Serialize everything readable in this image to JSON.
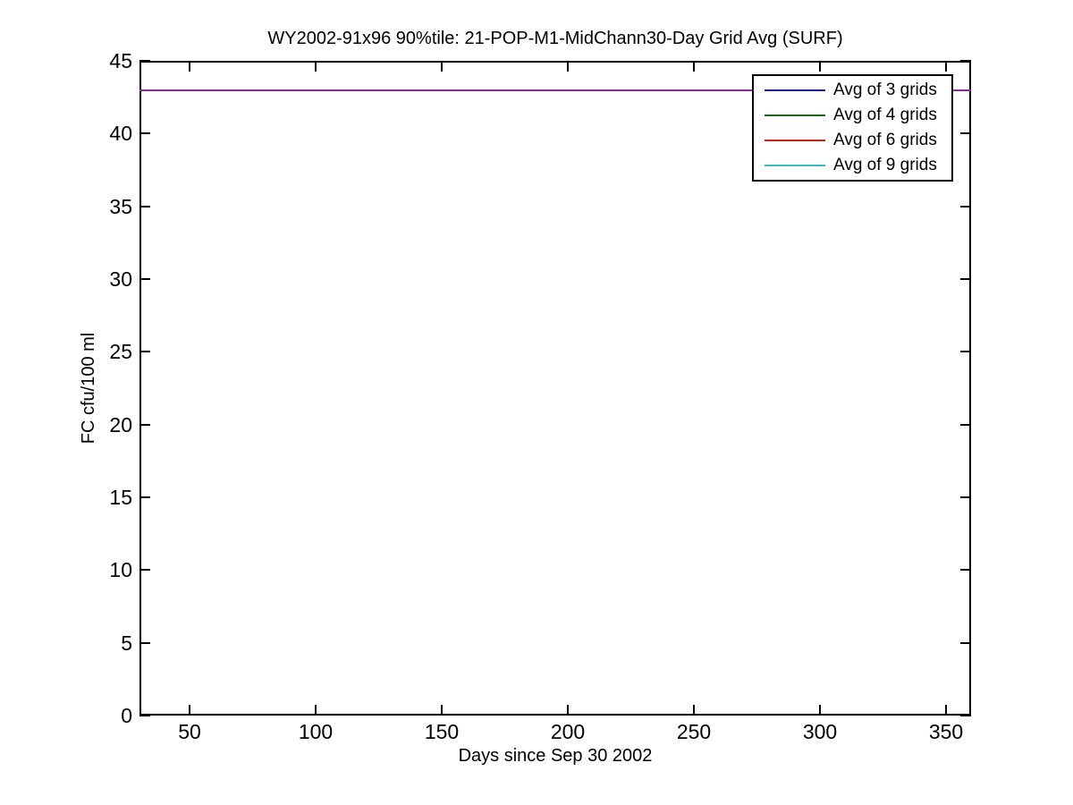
{
  "chart_data": {
    "type": "line",
    "title": "WY2002-91x96 90%tile: 21-POP-M1-MidChann30-Day Grid Avg (SURF)",
    "xlabel": "Days since Sep 30 2002",
    "ylabel": "FC cfu/100 ml",
    "xlim": [
      30,
      360
    ],
    "ylim": [
      0,
      45
    ],
    "xticks": [
      50,
      100,
      150,
      200,
      250,
      300,
      350
    ],
    "yticks": [
      0,
      5,
      10,
      15,
      20,
      25,
      30,
      35,
      40,
      45
    ],
    "grid": false,
    "box": true,
    "tick_direction": "in",
    "axis_color": "#000000",
    "legend_position": "top-right",
    "series": [
      {
        "name": "Avg of 3 grids",
        "color": "#1a1a99",
        "x_range": [
          30,
          360
        ],
        "constant_value": 43
      },
      {
        "name": "Avg of 4 grids",
        "color": "#1a661a",
        "x_range": [
          30,
          360
        ],
        "constant_value": 43
      },
      {
        "name": "Avg of 6 grids",
        "color": "#cc2222",
        "x_range": [
          30,
          360
        ],
        "constant_value": 43
      },
      {
        "name": "Avg of 9 grids",
        "color": "#33bfbf",
        "x_range": [
          30,
          360
        ],
        "constant_value": 43
      }
    ],
    "overlap_display_color": "#8b2c9b",
    "overlap_note": "all four series coincide at y=43; the rendered line appears purple"
  }
}
